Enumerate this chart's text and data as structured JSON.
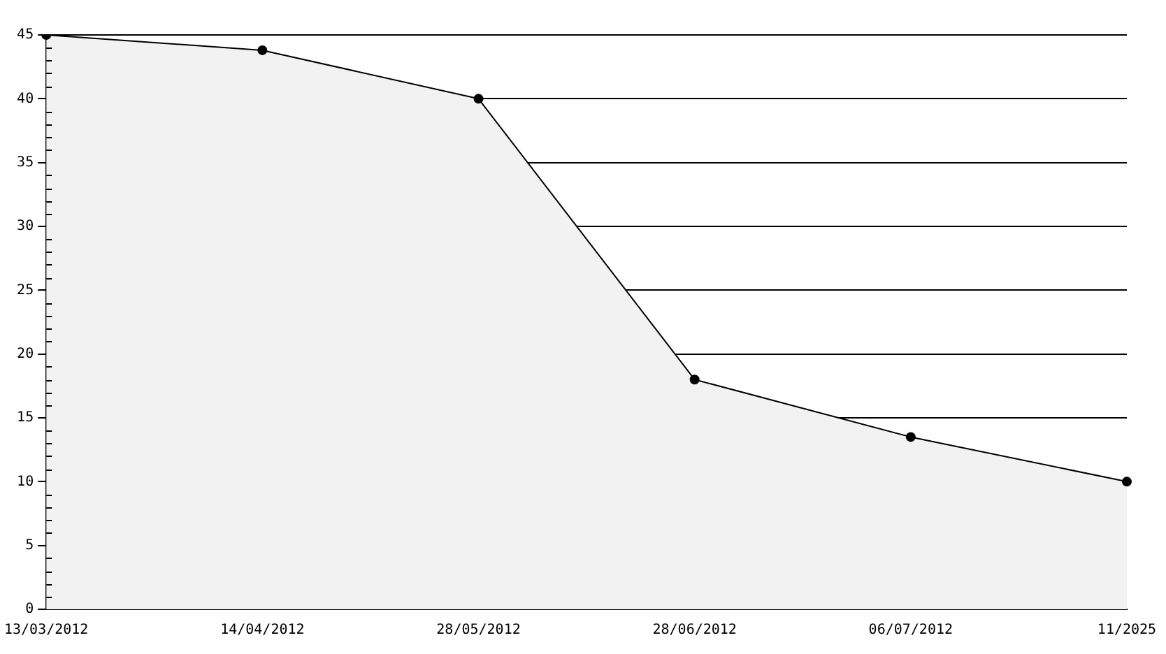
{
  "chart_data": {
    "type": "area",
    "categories": [
      "13/03/2012",
      "14/04/2012",
      "28/05/2012",
      "28/06/2012",
      "06/07/2012",
      "11/2025"
    ],
    "series": [
      {
        "color": "#000000",
        "values": [
          45,
          43.8,
          40,
          18,
          13.5,
          10
        ]
      }
    ],
    "ylim": [
      0,
      45
    ],
    "yticks": [
      0,
      5,
      10,
      15,
      20,
      25,
      30,
      35,
      40,
      45
    ],
    "grid": "y",
    "marker": "circle",
    "line_style": "solid",
    "legend": false
  }
}
